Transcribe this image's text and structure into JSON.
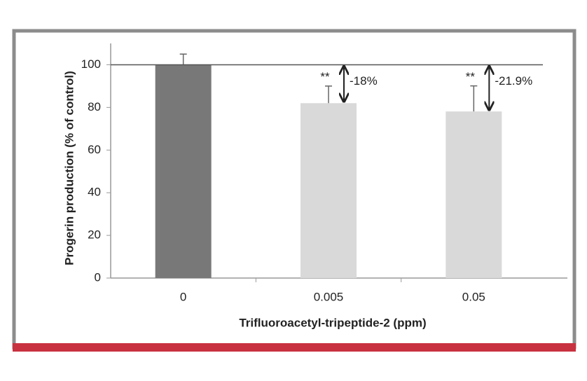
{
  "chart_data": {
    "type": "bar",
    "x_label": "Trifluoroacetyl-tripeptide-2 (ppm)",
    "y_label": "Progerin production (% of control)",
    "categories": [
      "0",
      "0.005",
      "0.05"
    ],
    "values": [
      100,
      82,
      78.1
    ],
    "errors": [
      5,
      8,
      12
    ],
    "colors": [
      "#787878",
      "#d9d9d9",
      "#d9d9d9"
    ],
    "ylim": [
      0,
      110
    ],
    "yticks": [
      0,
      20,
      40,
      60,
      80,
      100
    ],
    "reference_line": 100,
    "annotations": [
      {
        "category": "0.005",
        "stars": "**",
        "change": "-18%"
      },
      {
        "category": "0.05",
        "stars": "**",
        "change": "-21.9%"
      }
    ]
  }
}
